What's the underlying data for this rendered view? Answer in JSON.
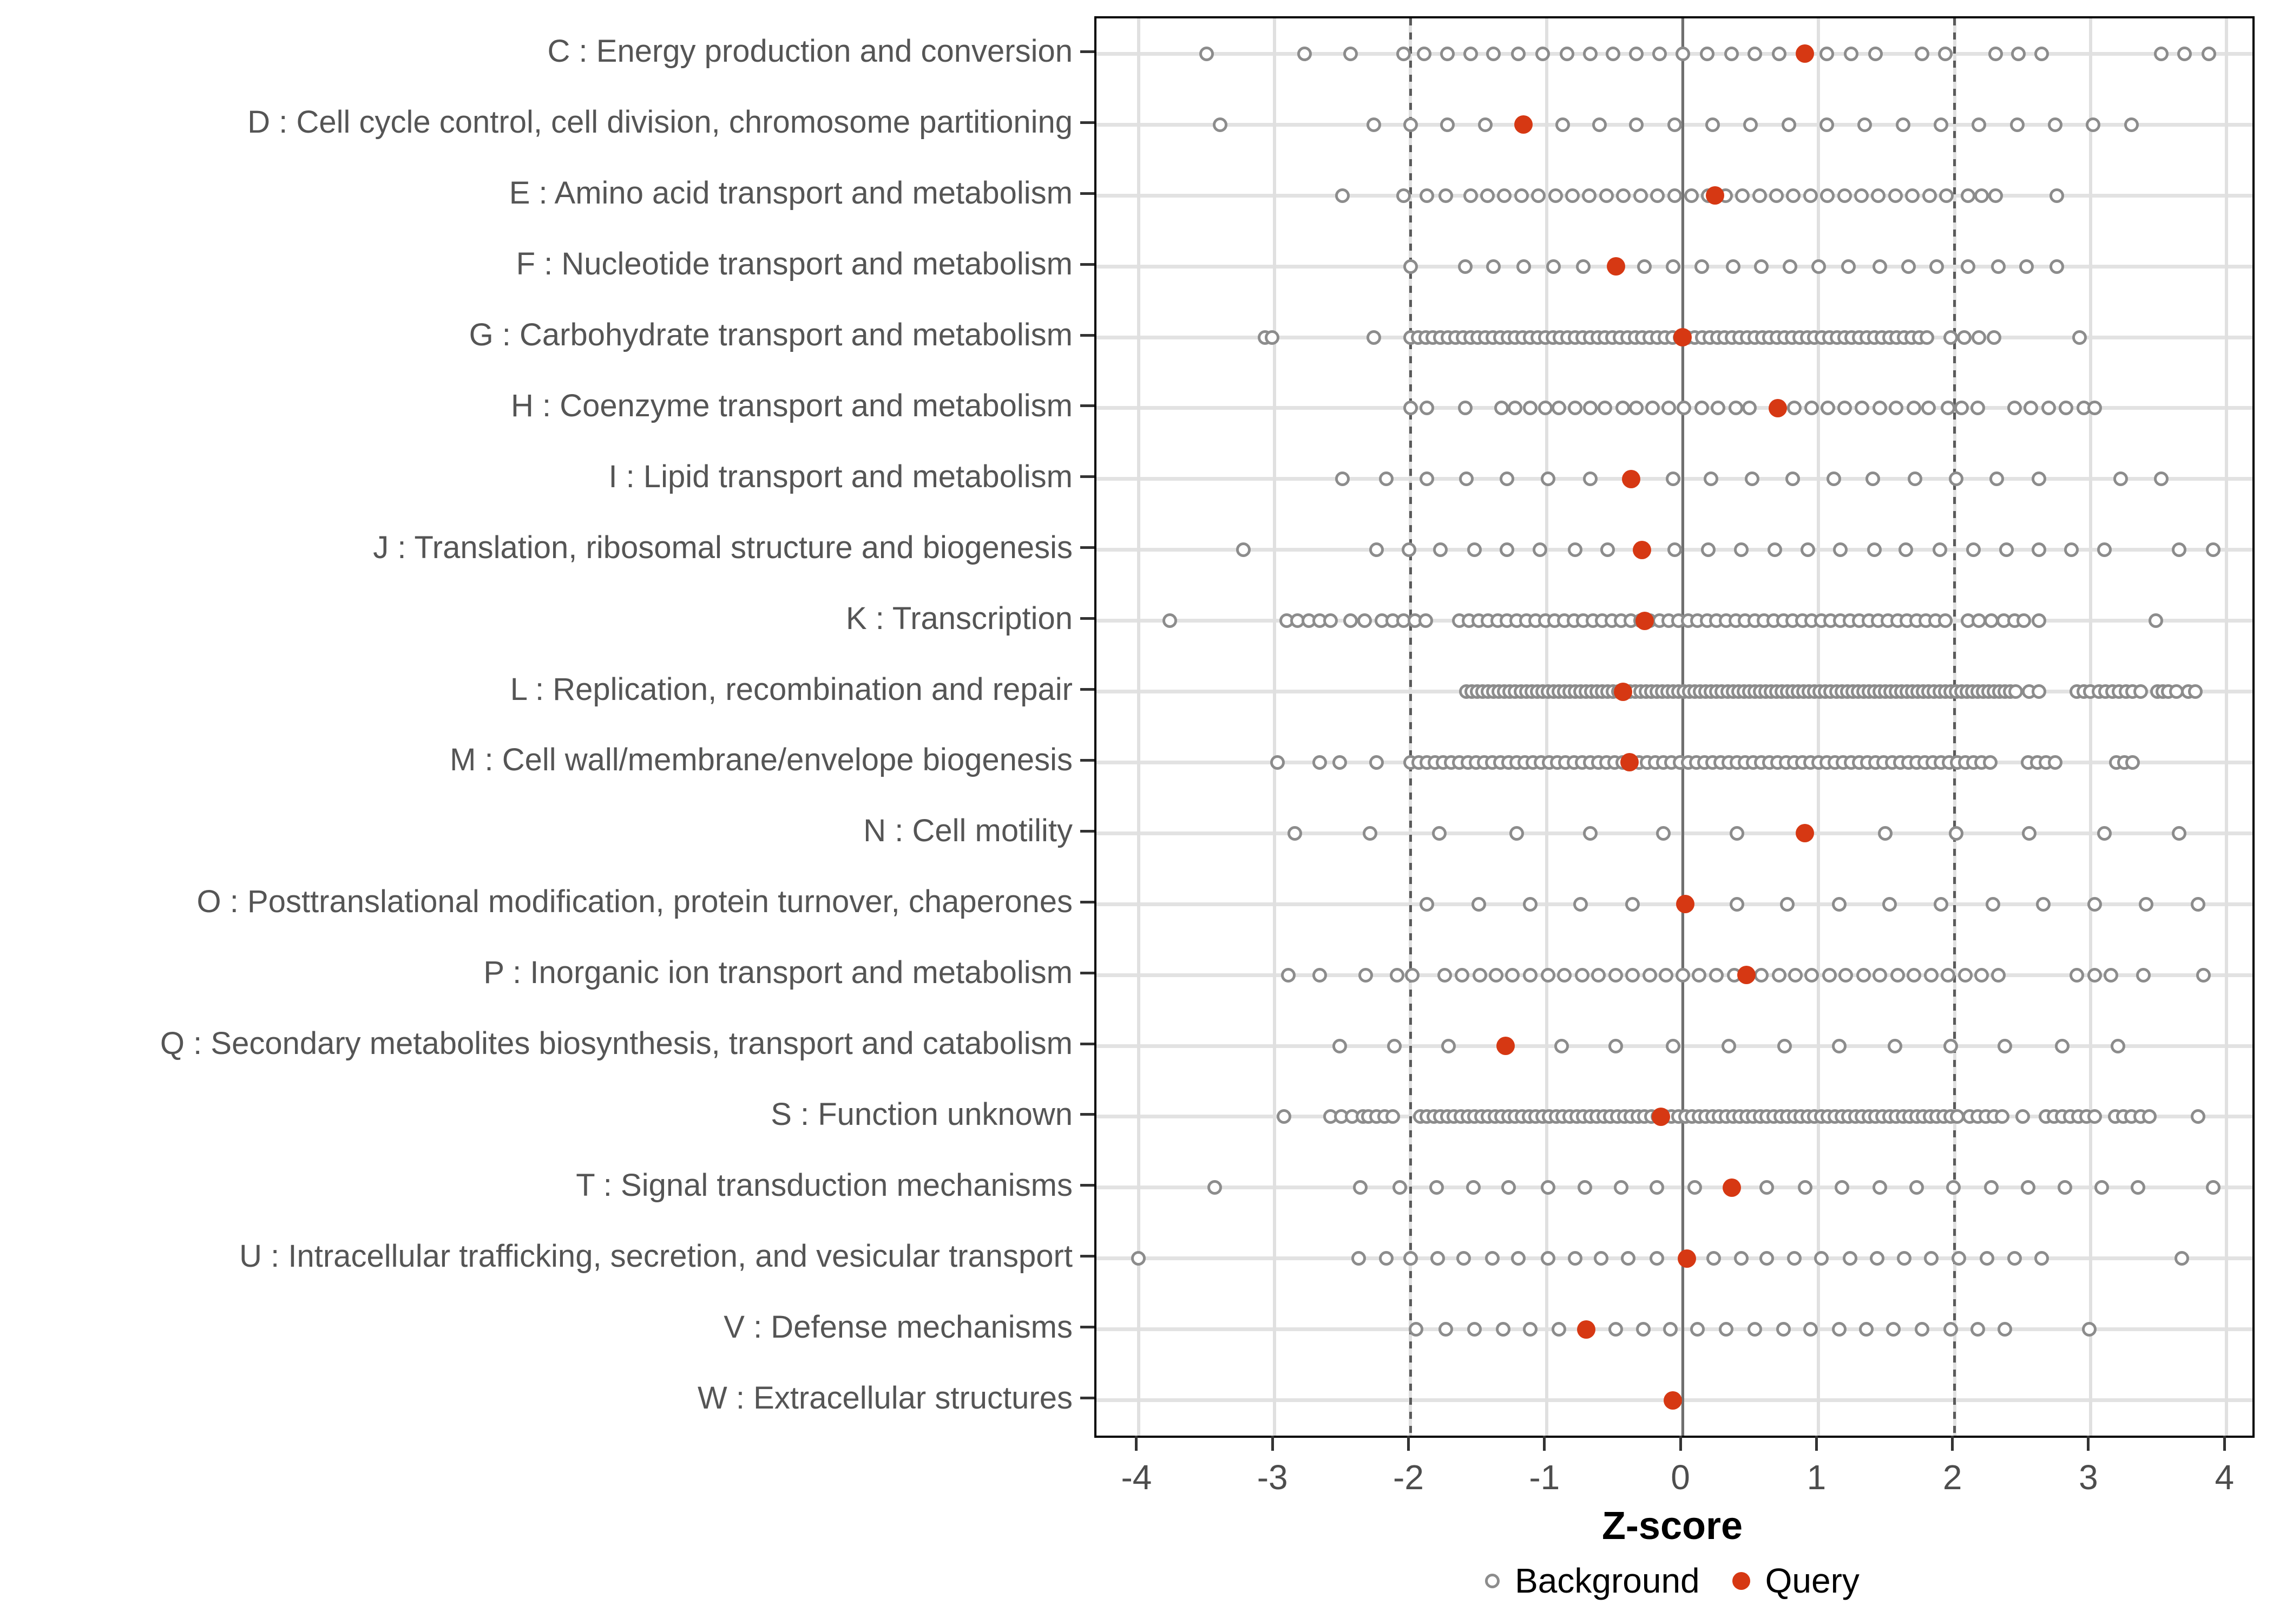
{
  "axis": {
    "x_label": "Z-score",
    "x_ticks": [
      -4,
      -3,
      -2,
      -1,
      0,
      1,
      2,
      3,
      4
    ],
    "x_tick_labels": [
      "-4",
      "-3",
      "-2",
      "-1",
      "0",
      "1",
      "2",
      "3",
      "4"
    ],
    "x_range": [
      -4.31,
      4.19
    ],
    "ref_line_zero": 0,
    "ref_lines_dashed": [
      -2,
      2
    ]
  },
  "legend": {
    "background_label": "Background",
    "query_label": "Query"
  },
  "colors": {
    "query": "#d63813",
    "background_stroke": "#8c8c8c",
    "gridline": "#e0e0e0",
    "ref_dashed": "#5a5a5a",
    "ref_zero": "#6f6f6f",
    "panel_border": "#000000",
    "axis_text": "#4d4d4d",
    "category_text": "#555555"
  },
  "chart_data": {
    "type": "scatter",
    "subtype": "categorical-strip-plot",
    "xlabel": "Z-score",
    "xlim": [
      -4.31,
      4.19
    ],
    "grid": "major-only",
    "legend_position": "bottom",
    "series_names": [
      "Background",
      "Query"
    ],
    "categories": [
      {
        "code": "C",
        "label": "C : Energy production and conversion",
        "query": 0.9,
        "background": [
          -3.5,
          -2.78,
          -2.44,
          -2.05,
          -1.9,
          -1.73,
          -1.56,
          -1.39,
          -1.21,
          -1.03,
          -0.85,
          -0.68,
          -0.51,
          -0.34,
          -0.17,
          0,
          0.18,
          0.36,
          0.53,
          0.71,
          1.06,
          1.24,
          1.42,
          1.76,
          1.93,
          2.3,
          2.47,
          2.64,
          3.52,
          3.69,
          3.87
        ]
      },
      {
        "code": "D",
        "label": "D : Cell cycle control, cell division, chromosome partitioning",
        "query": -1.17,
        "background": [
          -3.4,
          -2.27,
          -2.0,
          -1.73,
          -1.45,
          -0.88,
          -0.61,
          -0.34,
          -0.06,
          0.22,
          0.5,
          0.78,
          1.06,
          1.34,
          1.62,
          1.9,
          2.18,
          2.46,
          2.74,
          3.02,
          3.3
        ]
      },
      {
        "code": "E",
        "label": "E : Amino acid transport and metabolism",
        "query": 0.24,
        "background": [
          -2.5,
          -2.05,
          -1.88,
          -1.74,
          {
            "from": -1.56,
            "to": 1.95,
            "step": 0.125
          },
          2.1,
          2.2,
          2.3,
          2.75
        ]
      },
      {
        "code": "F",
        "label": "F : Nucleotide transport and metabolism",
        "query": -0.49,
        "background": [
          -2.0,
          -1.6,
          -1.39,
          -1.17,
          -0.95,
          -0.73,
          -0.28,
          -0.07,
          0.14,
          0.37,
          0.58,
          0.79,
          1.0,
          1.22,
          1.45,
          1.66,
          1.87,
          2.1,
          2.32,
          2.53,
          2.75
        ]
      },
      {
        "code": "G",
        "label": "G : Carbohydrate transport and metabolism",
        "query": 0.0,
        "background": [
          -3.07,
          -3.02,
          -2.27,
          {
            "from": -2.0,
            "to": 1.82,
            "step": 0.055
          },
          1.97,
          2.07,
          2.18,
          2.29,
          2.92
        ]
      },
      {
        "code": "H",
        "label": "H : Coenzyme transport and metabolism",
        "query": 0.7,
        "background": [
          -2.0,
          -1.88,
          -1.6,
          -1.33,
          -1.23,
          -1.12,
          -1.01,
          -0.91,
          -0.79,
          -0.68,
          -0.57,
          -0.44,
          -0.34,
          -0.22,
          -0.1,
          0.01,
          0.14,
          0.26,
          0.39,
          0.49,
          0.82,
          0.95,
          1.07,
          1.19,
          1.32,
          1.45,
          1.57,
          1.7,
          1.81,
          1.95,
          2.05,
          2.17,
          2.44,
          2.56,
          2.69,
          2.82,
          2.95,
          3.03
        ]
      },
      {
        "code": "I",
        "label": "I : Lipid transport and metabolism",
        "query": -0.38,
        "background": [
          -2.5,
          -2.18,
          -1.88,
          -1.59,
          -1.29,
          -0.99,
          -0.68,
          -0.07,
          0.21,
          0.51,
          0.81,
          1.11,
          1.4,
          1.71,
          2.01,
          2.31,
          2.62,
          3.22,
          3.52
        ]
      },
      {
        "code": "J",
        "label": "J : Translation, ribosomal structure and biogenesis",
        "query": -0.3,
        "background": [
          -3.23,
          -2.25,
          -2.01,
          -1.78,
          -1.53,
          -1.29,
          -1.05,
          -0.79,
          -0.55,
          -0.06,
          0.19,
          0.43,
          0.68,
          0.92,
          1.16,
          1.41,
          1.64,
          1.89,
          2.14,
          2.38,
          2.62,
          2.86,
          3.1,
          3.65,
          3.9
        ]
      },
      {
        "code": "K",
        "label": "K : Transcription",
        "query": -0.28,
        "background": [
          -3.77,
          -2.91,
          -2.83,
          -2.75,
          -2.67,
          -2.59,
          -2.44,
          -2.34,
          -2.21,
          -2.13,
          -2.05,
          -1.97,
          -1.89,
          {
            "from": -1.64,
            "to": 1.93,
            "step": 0.07
          },
          2.1,
          2.18,
          2.27,
          2.36,
          2.44,
          2.51,
          2.62,
          3.48
        ]
      },
      {
        "code": "L",
        "label": "L : Replication, recombination and repair",
        "query": -0.44,
        "background": [
          {
            "from": -1.59,
            "to": 2.45,
            "step": 0.04
          },
          2.55,
          2.62,
          2.9,
          2.95,
          3.0,
          3.06,
          3.11,
          3.16,
          3.21,
          3.26,
          3.31,
          3.37,
          3.49,
          3.53,
          3.57,
          3.63,
          3.72,
          3.77
        ]
      },
      {
        "code": "M",
        "label": "M : Cell wall/membrane/envelope biogenesis",
        "query": -0.39,
        "background": [
          -2.98,
          -2.67,
          -2.52,
          -2.25,
          {
            "from": -2.0,
            "to": 2.3,
            "step": 0.06
          },
          2.54,
          2.61,
          2.67,
          2.74,
          3.19,
          3.25,
          3.31
        ]
      },
      {
        "code": "N",
        "label": "N : Cell motility",
        "query": 0.9,
        "background": [
          -2.85,
          -2.3,
          -1.79,
          -1.22,
          -0.68,
          -0.14,
          0.4,
          1.49,
          2.01,
          2.55,
          3.1,
          3.65
        ]
      },
      {
        "code": "O",
        "label": "O : Posttranslational modification, protein turnover, chaperones",
        "query": 0.02,
        "background": [
          -1.88,
          -1.5,
          -1.12,
          -0.75,
          -0.37,
          0.4,
          0.77,
          1.15,
          1.52,
          1.9,
          2.28,
          2.65,
          3.03,
          3.41,
          3.79
        ]
      },
      {
        "code": "P",
        "label": "P : Inorganic ion transport and metabolism",
        "query": 0.47,
        "background": [
          -2.9,
          -2.67,
          -2.33,
          -2.1,
          -1.99,
          -1.75,
          -1.62,
          -1.49,
          -1.37,
          -1.25,
          -1.12,
          -0.99,
          -0.87,
          -0.74,
          -0.62,
          -0.49,
          -0.37,
          -0.24,
          -0.12,
          0.0,
          0.12,
          0.25,
          0.38,
          0.58,
          0.71,
          0.83,
          0.95,
          1.08,
          1.2,
          1.33,
          1.45,
          1.58,
          1.7,
          1.83,
          1.95,
          2.08,
          2.2,
          2.32,
          2.9,
          3.03,
          3.15,
          3.39,
          3.83
        ]
      },
      {
        "code": "Q",
        "label": "Q : Secondary metabolites biosynthesis, transport and catabolism",
        "query": -1.3,
        "background": [
          -2.52,
          -2.12,
          -1.72,
          -0.89,
          -0.49,
          -0.07,
          0.34,
          0.75,
          1.15,
          1.56,
          1.97,
          2.37,
          2.79,
          3.2
        ]
      },
      {
        "code": "S",
        "label": "S : Function unknown",
        "query": -0.16,
        "background": [
          -2.93,
          -2.59,
          -2.51,
          -2.43,
          -2.35,
          -2.31,
          -2.25,
          -2.19,
          -2.13,
          {
            "from": -1.93,
            "to": 2.04,
            "step": 0.05
          },
          2.11,
          2.17,
          2.23,
          2.29,
          2.35,
          2.5,
          2.67,
          2.73,
          2.79,
          2.85,
          2.91,
          2.97,
          3.03,
          3.18,
          3.24,
          3.3,
          3.37,
          3.43,
          3.79
        ]
      },
      {
        "code": "T",
        "label": "T : Signal transduction mechanisms",
        "query": 0.36,
        "background": [
          -3.44,
          -2.37,
          -2.08,
          -1.81,
          -1.54,
          -1.28,
          -0.99,
          -0.72,
          -0.45,
          -0.19,
          0.09,
          0.62,
          0.9,
          1.17,
          1.45,
          1.72,
          1.99,
          2.27,
          2.54,
          2.81,
          3.08,
          3.35,
          3.9
        ]
      },
      {
        "code": "U",
        "label": "U : Intracellular trafficking, secretion, and vesicular transport",
        "query": 0.03,
        "background": [
          -4.0,
          -2.38,
          -2.18,
          -2.0,
          -1.8,
          -1.61,
          -1.4,
          -1.21,
          -0.99,
          -0.79,
          -0.6,
          -0.4,
          -0.19,
          0.23,
          0.43,
          0.62,
          0.82,
          1.02,
          1.23,
          1.43,
          1.63,
          1.83,
          2.03,
          2.24,
          2.44,
          2.64,
          3.67
        ]
      },
      {
        "code": "V",
        "label": "V : Defense mechanisms",
        "query": -0.71,
        "background": [
          -1.96,
          -1.74,
          -1.53,
          -1.32,
          -1.12,
          -0.91,
          -0.49,
          -0.29,
          -0.09,
          0.11,
          0.32,
          0.53,
          0.74,
          0.94,
          1.15,
          1.35,
          1.55,
          1.76,
          1.97,
          2.17,
          2.37,
          2.99
        ]
      },
      {
        "code": "W",
        "label": "W : Extracellular structures",
        "query": -0.07,
        "background": []
      }
    ]
  }
}
